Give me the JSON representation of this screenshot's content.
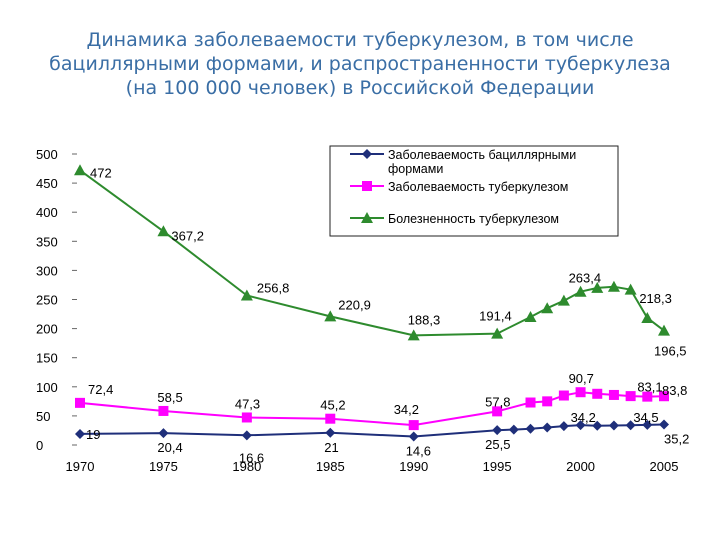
{
  "title_lines": [
    "Динамика заболеваемости туберкулезом, в том числе",
    "бациллярными формами, и распространенности туберкулеза",
    "(на 100 000 человек) в Российской Федерации"
  ],
  "chart_data": {
    "type": "line",
    "title": "Динамика заболеваемости туберкулезом, в том числе бациллярными формами, и распространенности туберкулеза (на 100 000 человек) в Российской Федерации",
    "xlabel": "",
    "ylabel": "",
    "xlim": [
      1970,
      2005
    ],
    "ylim": [
      0,
      500
    ],
    "x_ticks": [
      "1970",
      "1975",
      "1980",
      "1985",
      "1990",
      "1995",
      "2000",
      "2005"
    ],
    "y_ticks": [
      "0",
      "50",
      "100",
      "150",
      "200",
      "250",
      "300",
      "350",
      "400",
      "450",
      "500"
    ],
    "grid": false,
    "legend_position": "top-right",
    "series": [
      {
        "name": "Заболеваемость бациллярными формами",
        "color": "#1f2f7a",
        "marker": "diamond",
        "x": [
          1970,
          1975,
          1980,
          1985,
          1990,
          1995,
          1996,
          1997,
          1998,
          1999,
          2000,
          2001,
          2002,
          2003,
          2004,
          2005
        ],
        "y": [
          19,
          20.4,
          16.6,
          21,
          14.6,
          25.5,
          26.5,
          28,
          30,
          32.5,
          34.2,
          33,
          33.5,
          34,
          34.5,
          35.2
        ],
        "labels": [
          {
            "x": 1970,
            "text": "19"
          },
          {
            "x": 1975,
            "text": "20,4"
          },
          {
            "x": 1980,
            "text": "16,6"
          },
          {
            "x": 1985,
            "text": "21"
          },
          {
            "x": 1990,
            "text": "14,6"
          },
          {
            "x": 1995,
            "text": "25,5"
          },
          {
            "x": 2000,
            "text": "34,2"
          },
          {
            "x": 2004,
            "text": "34,5"
          },
          {
            "x": 2005,
            "text": "35,2"
          }
        ]
      },
      {
        "name": "Заболеваемость туберкулезом",
        "color": "#ff00ff",
        "marker": "square",
        "x": [
          1970,
          1975,
          1980,
          1985,
          1990,
          1995,
          1997,
          1998,
          1999,
          2000,
          2001,
          2002,
          2003,
          2004,
          2005
        ],
        "y": [
          72.4,
          58.5,
          47.3,
          45.2,
          34.2,
          57.8,
          73,
          75,
          85,
          90.7,
          88,
          86,
          84,
          83.1,
          83.8
        ],
        "labels": [
          {
            "x": 1970,
            "text": "72,4"
          },
          {
            "x": 1975,
            "text": "58,5"
          },
          {
            "x": 1980,
            "text": "47,3"
          },
          {
            "x": 1985,
            "text": "45,2"
          },
          {
            "x": 1990,
            "text": "34,2"
          },
          {
            "x": 1995,
            "text": "57,8"
          },
          {
            "x": 2000,
            "text": "90,7"
          },
          {
            "x": 2004,
            "text": "83,1"
          },
          {
            "x": 2005,
            "text": "83,8"
          }
        ]
      },
      {
        "name": "Болезненность туберкулезом",
        "color": "#2e8b2e",
        "marker": "triangle",
        "x": [
          1970,
          1975,
          1980,
          1985,
          1990,
          1995,
          1997,
          1998,
          1999,
          2000,
          2001,
          2002,
          2003,
          2004,
          2005
        ],
        "y": [
          472,
          367.2,
          256.8,
          220.9,
          188.3,
          191.4,
          220,
          235,
          248,
          263.4,
          270,
          272,
          267,
          218.3,
          196.5
        ],
        "labels": [
          {
            "x": 1970,
            "text": "472"
          },
          {
            "x": 1975,
            "text": "367,2"
          },
          {
            "x": 1980,
            "text": "256,8"
          },
          {
            "x": 1985,
            "text": "220,9"
          },
          {
            "x": 1990,
            "text": "188,3"
          },
          {
            "x": 1995,
            "text": "191,4"
          },
          {
            "x": 2000,
            "text": "263,4"
          },
          {
            "x": 2004,
            "text": "218,3"
          },
          {
            "x": 2005,
            "text": "196,5"
          }
        ]
      }
    ]
  }
}
